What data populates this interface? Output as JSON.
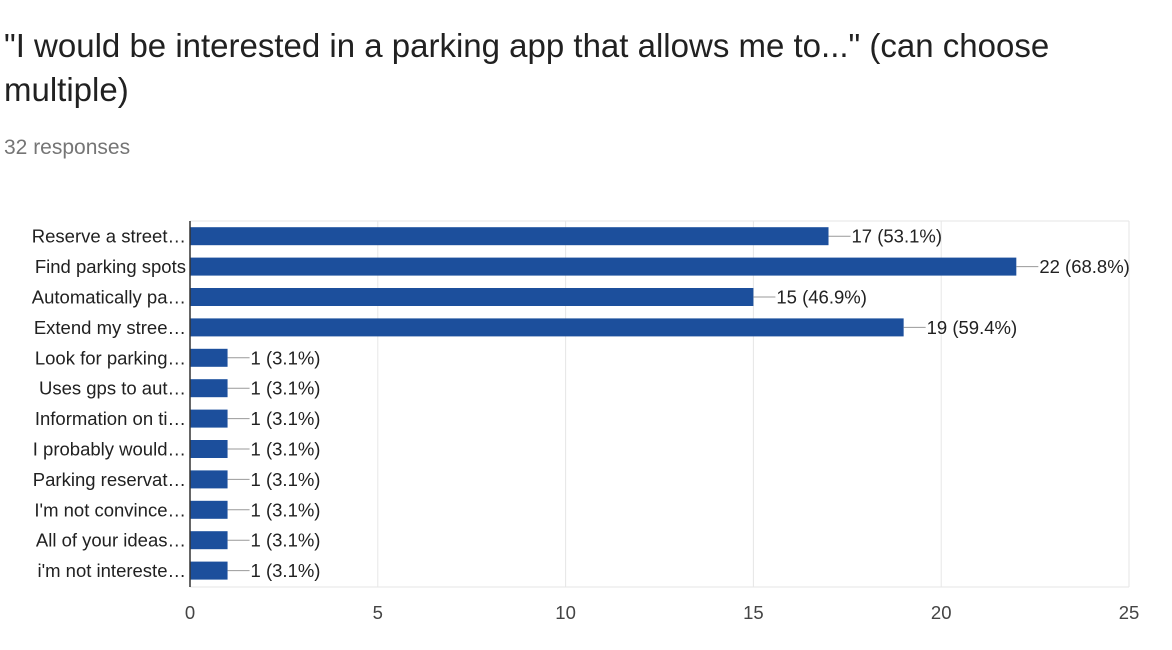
{
  "header": {
    "title": "\"I would be interested in a parking app that allows me to...\" (can choose multiple)",
    "responses": "32 responses"
  },
  "colors": {
    "bar": "#1c4f9c",
    "gridline": "#e6e6e6",
    "axis": "#333333",
    "label": "#212121",
    "tick": "#444444"
  },
  "chart_data": {
    "type": "bar",
    "orientation": "horizontal",
    "categories": [
      "Reserve a street…",
      "Find parking spots",
      "Automatically pa…",
      "Extend my stree…",
      "Look for parking…",
      "Uses gps to aut…",
      "Information on ti…",
      "I probably would…",
      "Parking reservat…",
      "I'm not convince…",
      "All of your ideas…",
      "i'm not intereste…"
    ],
    "values": [
      17,
      22,
      15,
      19,
      1,
      1,
      1,
      1,
      1,
      1,
      1,
      1
    ],
    "data_labels": [
      "17 (53.1%)",
      "22 (68.8%)",
      "15 (46.9%)",
      "19 (59.4%)",
      "1 (3.1%)",
      "1 (3.1%)",
      "1 (3.1%)",
      "1 (3.1%)",
      "1 (3.1%)",
      "1 (3.1%)",
      "1 (3.1%)",
      "1 (3.1%)"
    ],
    "xlim": [
      0,
      25
    ],
    "xticks": [
      0,
      5,
      10,
      15,
      20,
      25
    ],
    "grid": true,
    "legend": "none"
  }
}
